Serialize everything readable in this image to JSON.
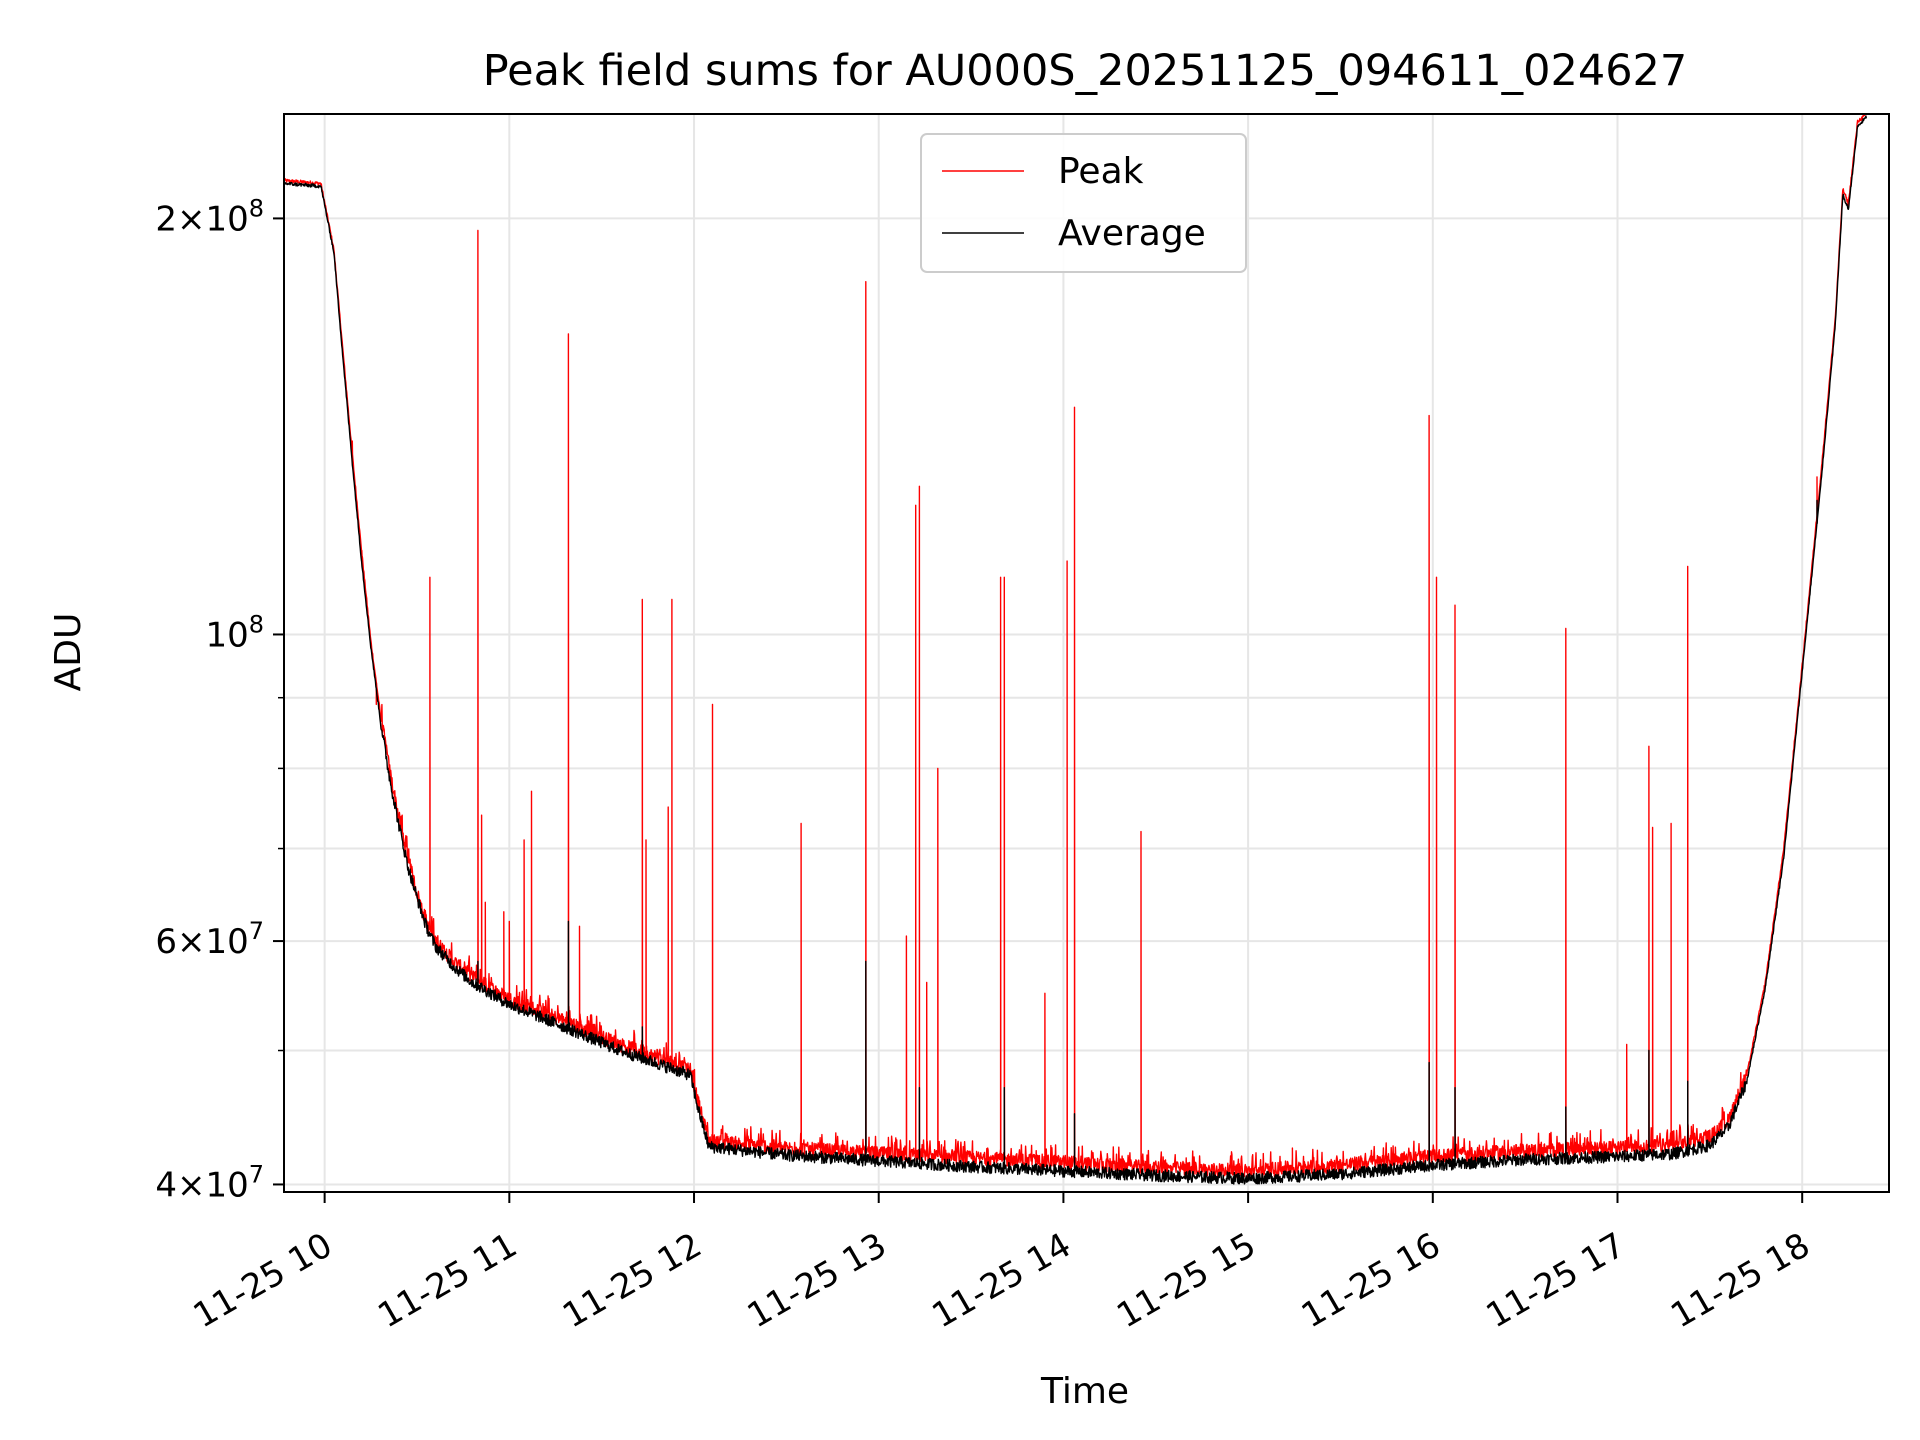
{
  "chart_data": {
    "type": "line",
    "title": "Peak field sums for AU000S_20251125_094611_024627",
    "xlabel": "Time",
    "ylabel": "ADU",
    "yscale": "log",
    "ylim": [
      39500000,
      238000000
    ],
    "xlim_hours": [
      9.78,
      18.47
    ],
    "grid": true,
    "legend_position": "upper center",
    "colors": {
      "peak": "#ff0000",
      "average": "#000000",
      "grid": "#e6e6e6"
    },
    "x_ticks": [
      {
        "value": 10,
        "label": "11-25 10"
      },
      {
        "value": 11,
        "label": "11-25 11"
      },
      {
        "value": 12,
        "label": "11-25 12"
      },
      {
        "value": 13,
        "label": "11-25 13"
      },
      {
        "value": 14,
        "label": "11-25 14"
      },
      {
        "value": 15,
        "label": "11-25 15"
      },
      {
        "value": 16,
        "label": "11-25 16"
      },
      {
        "value": 17,
        "label": "11-25 17"
      },
      {
        "value": 18,
        "label": "11-25 18"
      }
    ],
    "y_major_ticks": [
      {
        "value": 40000000,
        "mant": "4",
        "exp": "7"
      },
      {
        "value": 60000000,
        "mant": "6",
        "exp": "7"
      },
      {
        "value": 100000000,
        "mant": "",
        "exp": "8"
      },
      {
        "value": 200000000,
        "mant": "2",
        "exp": "8"
      }
    ],
    "y_minor_ticks": [
      50000000,
      70000000,
      80000000,
      90000000
    ],
    "series": [
      {
        "name": "Peak",
        "color": "#ff0000",
        "baseline": [
          [
            9.78,
            213000000
          ],
          [
            9.98,
            212000000
          ],
          [
            10.05,
            190000000
          ],
          [
            10.1,
            160000000
          ],
          [
            10.15,
            135000000
          ],
          [
            10.2,
            115000000
          ],
          [
            10.25,
            99000000
          ],
          [
            10.3,
            88000000
          ],
          [
            10.35,
            80000000
          ],
          [
            10.4,
            74000000
          ],
          [
            10.45,
            69000000
          ],
          [
            10.5,
            65000000
          ],
          [
            10.55,
            62000000
          ],
          [
            10.6,
            60000000
          ],
          [
            10.7,
            58000000
          ],
          [
            10.8,
            56500000
          ],
          [
            11.0,
            54500000
          ],
          [
            11.3,
            52500000
          ],
          [
            11.6,
            50500000
          ],
          [
            11.98,
            48500000
          ],
          [
            12.02,
            46000000
          ],
          [
            12.08,
            43000000
          ],
          [
            12.5,
            42500000
          ],
          [
            13.0,
            42100000
          ],
          [
            13.5,
            41800000
          ],
          [
            14.0,
            41500000
          ],
          [
            14.5,
            41100000
          ],
          [
            15.0,
            40900000
          ],
          [
            15.5,
            41300000
          ],
          [
            16.0,
            41900000
          ],
          [
            16.5,
            42300000
          ],
          [
            17.0,
            42500000
          ],
          [
            17.3,
            42700000
          ],
          [
            17.5,
            43300000
          ],
          [
            17.6,
            44500000
          ],
          [
            17.7,
            48000000
          ],
          [
            17.8,
            56000000
          ],
          [
            17.9,
            70000000
          ],
          [
            18.0,
            95000000
          ],
          [
            18.1,
            130000000
          ],
          [
            18.18,
            170000000
          ],
          [
            18.22,
            210000000
          ],
          [
            18.25,
            205000000
          ],
          [
            18.3,
            235000000
          ],
          [
            18.35,
            238000000
          ]
        ],
        "spikes": [
          [
            10.15,
            138000000
          ],
          [
            10.2,
            113000000
          ],
          [
            10.28,
            89000000
          ],
          [
            10.42,
            74000000
          ],
          [
            10.57,
            110000000
          ],
          [
            10.83,
            196000000
          ],
          [
            10.85,
            74000000
          ],
          [
            10.87,
            64000000
          ],
          [
            10.97,
            63000000
          ],
          [
            11.0,
            62000000
          ],
          [
            11.08,
            71000000
          ],
          [
            11.12,
            77000000
          ],
          [
            11.32,
            165000000
          ],
          [
            11.38,
            61500000
          ],
          [
            11.72,
            106000000
          ],
          [
            11.74,
            71000000
          ],
          [
            11.86,
            75000000
          ],
          [
            11.88,
            106000000
          ],
          [
            12.1,
            89000000
          ],
          [
            12.58,
            73000000
          ],
          [
            12.93,
            180000000
          ],
          [
            13.15,
            60500000
          ],
          [
            13.2,
            124000000
          ],
          [
            13.22,
            128000000
          ],
          [
            13.26,
            56000000
          ],
          [
            13.32,
            80000000
          ],
          [
            13.66,
            110000000
          ],
          [
            13.68,
            110000000
          ],
          [
            13.9,
            55000000
          ],
          [
            14.02,
            113000000
          ],
          [
            14.06,
            146000000
          ],
          [
            14.42,
            72000000
          ],
          [
            15.24,
            42500000
          ],
          [
            15.98,
            144000000
          ],
          [
            16.02,
            110000000
          ],
          [
            16.12,
            105000000
          ],
          [
            16.72,
            101000000
          ],
          [
            17.05,
            50500000
          ],
          [
            17.17,
            83000000
          ],
          [
            17.19,
            72500000
          ],
          [
            17.29,
            73000000
          ],
          [
            17.38,
            112000000
          ],
          [
            18.08,
            130000000
          ]
        ]
      },
      {
        "name": "Average",
        "color": "#000000",
        "baseline": [
          [
            9.78,
            212000000
          ],
          [
            9.98,
            211000000
          ],
          [
            10.05,
            189000000
          ],
          [
            10.1,
            158000000
          ],
          [
            10.15,
            133000000
          ],
          [
            10.2,
            113000000
          ],
          [
            10.25,
            98000000
          ],
          [
            10.3,
            87000000
          ],
          [
            10.35,
            79000000
          ],
          [
            10.4,
            73000000
          ],
          [
            10.45,
            68000000
          ],
          [
            10.5,
            64500000
          ],
          [
            10.55,
            61500000
          ],
          [
            10.6,
            59500000
          ],
          [
            10.7,
            57500000
          ],
          [
            10.8,
            56000000
          ],
          [
            11.0,
            54000000
          ],
          [
            11.3,
            52000000
          ],
          [
            11.6,
            50000000
          ],
          [
            11.98,
            48000000
          ],
          [
            12.02,
            45500000
          ],
          [
            12.08,
            42600000
          ],
          [
            12.5,
            42000000
          ],
          [
            13.0,
            41600000
          ],
          [
            13.5,
            41200000
          ],
          [
            14.0,
            40900000
          ],
          [
            14.5,
            40600000
          ],
          [
            15.0,
            40400000
          ],
          [
            15.5,
            40700000
          ],
          [
            16.0,
            41300000
          ],
          [
            16.5,
            41700000
          ],
          [
            17.0,
            41900000
          ],
          [
            17.3,
            42100000
          ],
          [
            17.5,
            42700000
          ],
          [
            17.6,
            44000000
          ],
          [
            17.7,
            47500000
          ],
          [
            17.8,
            55500000
          ],
          [
            17.9,
            69000000
          ],
          [
            18.0,
            94000000
          ],
          [
            18.1,
            128000000
          ],
          [
            18.18,
            168000000
          ],
          [
            18.22,
            208000000
          ],
          [
            18.25,
            203000000
          ],
          [
            18.3,
            233000000
          ],
          [
            18.35,
            237000000
          ]
        ],
        "spikes": [
          [
            10.83,
            58000000
          ],
          [
            11.32,
            62000000
          ],
          [
            11.72,
            52000000
          ],
          [
            12.93,
            58000000
          ],
          [
            13.22,
            47000000
          ],
          [
            13.68,
            47000000
          ],
          [
            14.06,
            45000000
          ],
          [
            15.98,
            49000000
          ],
          [
            16.12,
            47000000
          ],
          [
            16.72,
            45500000
          ],
          [
            17.17,
            50000000
          ],
          [
            17.38,
            47500000
          ],
          [
            18.08,
            125000000
          ]
        ]
      }
    ]
  }
}
